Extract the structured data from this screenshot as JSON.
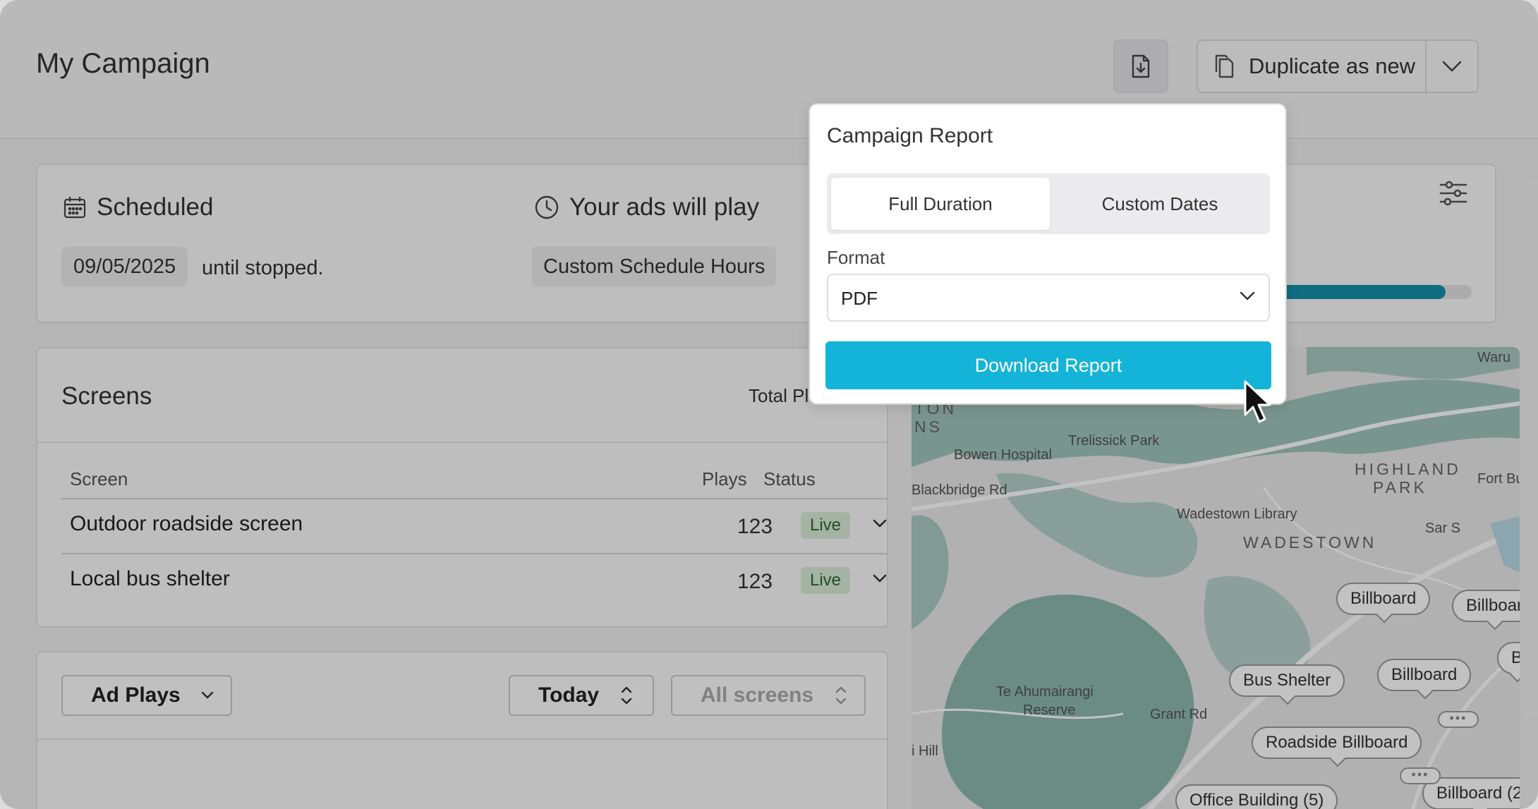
{
  "header": {
    "title": "My Campaign",
    "export_icon": "file-download-icon",
    "duplicate_label": "Duplicate as new",
    "duplicate_icon": "copy-icon",
    "duplicate_menu_icon": "chevron-down-icon"
  },
  "schedule": {
    "scheduled_label": "Scheduled",
    "start_date": "09/05/2025",
    "until_text": "until stopped.",
    "plays_label": "Your ads will play",
    "hours_value": "Custom Schedule Hours",
    "progress_fraction": 0.87
  },
  "screens": {
    "title": "Screens",
    "total_plays_label": "Total Pl",
    "columns": [
      "Screen",
      "Plays",
      "Status"
    ],
    "rows": [
      {
        "name": "Outdoor roadside screen",
        "plays": "123",
        "status": "Live"
      },
      {
        "name": "Local bus shelter",
        "plays": "123",
        "status": "Live"
      }
    ]
  },
  "chart_controls": {
    "metric": "Ad Plays",
    "period": "Today",
    "screens_filter": "All screens"
  },
  "map": {
    "labels": [
      "Waru",
      "TON",
      "NS",
      "Trelissick Park",
      "Bowen Hospital",
      "Blackbridge Rd",
      "HIGHLAND",
      "PARK",
      "Fort Buc",
      "Wadestown Library",
      "WADESTOWN",
      "Sar S",
      "Te Ahumairangi",
      "Reserve",
      "Grant Rd",
      "i Hill"
    ],
    "pins": [
      "Billboard",
      "Billboar",
      "B",
      "Billboard",
      "Bus Shelter",
      "Roadside Billboard",
      "Office Building (5)",
      "Billboard (2"
    ]
  },
  "popover": {
    "title": "Campaign Report",
    "tabs": [
      "Full Duration",
      "Custom Dates"
    ],
    "active_tab": "Full Duration",
    "format_label": "Format",
    "format_value": "PDF",
    "download_label": "Download Report"
  },
  "colors": {
    "accent": "#14b4d8",
    "progress": "#1690a9",
    "live_badge_bg": "#d8ecd6",
    "live_badge_text": "#2d6a2d"
  }
}
